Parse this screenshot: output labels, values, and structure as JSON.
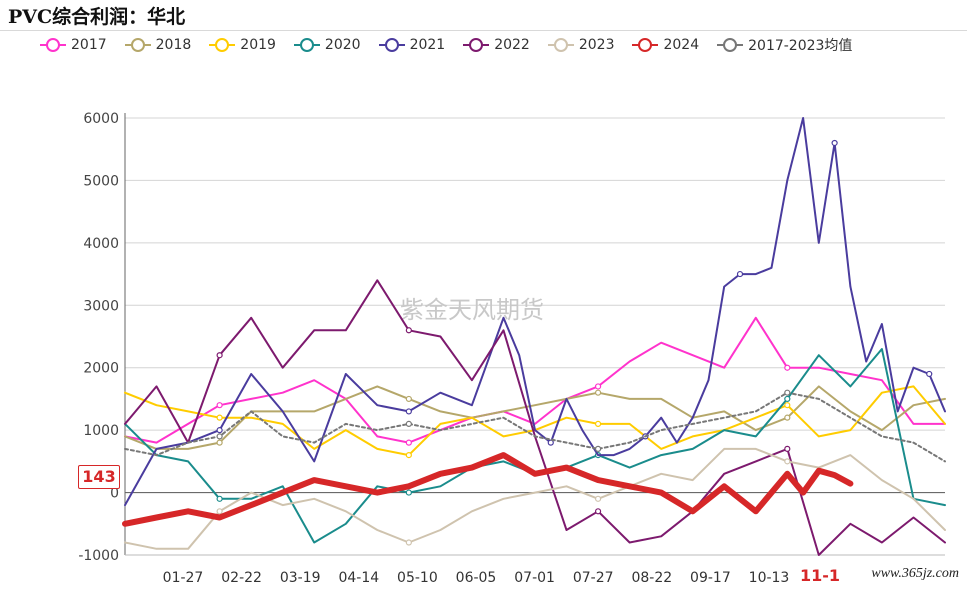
{
  "title": "PVC综合利润：华北",
  "watermark": "紫金天风期货",
  "corner_watermark": "www.365jz.com",
  "latest_value_label": "143",
  "axis_pointer_label": "11-1",
  "legend": [
    {
      "name": "2017",
      "color": "#ff33cc"
    },
    {
      "name": "2018",
      "color": "#b5a76a"
    },
    {
      "name": "2019",
      "color": "#ffcc00"
    },
    {
      "name": "2020",
      "color": "#1a8c8c"
    },
    {
      "name": "2021",
      "color": "#4a3c9e"
    },
    {
      "name": "2022",
      "color": "#7d1a6e"
    },
    {
      "name": "2023",
      "color": "#cfc3ae"
    },
    {
      "name": "2024",
      "color": "#d62728"
    },
    {
      "name": "2017-2023均值",
      "color": "#777777"
    }
  ],
  "chart_data": {
    "type": "line",
    "title": "PVC综合利润：华北",
    "x_ticks": [
      "01-27",
      "02-22",
      "03-19",
      "04-14",
      "05-10",
      "06-05",
      "07-01",
      "07-27",
      "08-22",
      "09-17",
      "10-13",
      "11-1"
    ],
    "ylim": [
      -1000,
      6000
    ],
    "y_ticks": [
      -1000,
      0,
      1000,
      2000,
      3000,
      4000,
      5000,
      6000
    ],
    "grid": true,
    "legend_position": "top",
    "x_index_range": [
      0,
      52
    ],
    "series": [
      {
        "name": "2017",
        "color": "#ff33cc",
        "width": 2,
        "x": [
          0,
          2,
          4,
          6,
          8,
          10,
          12,
          14,
          16,
          18,
          20,
          22,
          24,
          26,
          28,
          30,
          32,
          34,
          36,
          38,
          40,
          42,
          44,
          46,
          48,
          50,
          52
        ],
        "y": [
          900,
          800,
          1100,
          1400,
          1500,
          1600,
          1800,
          1500,
          900,
          800,
          1000,
          1200,
          1300,
          1100,
          1500,
          1700,
          2100,
          2400,
          2200,
          2000,
          2800,
          2000,
          2000,
          1900,
          1800,
          1100,
          1100
        ]
      },
      {
        "name": "2018",
        "color": "#b5a76a",
        "width": 2,
        "x": [
          0,
          2,
          4,
          6,
          8,
          10,
          12,
          14,
          16,
          18,
          20,
          22,
          24,
          26,
          28,
          30,
          32,
          34,
          36,
          38,
          40,
          42,
          44,
          46,
          48,
          50,
          52
        ],
        "y": [
          900,
          700,
          700,
          800,
          1300,
          1300,
          1300,
          1500,
          1700,
          1500,
          1300,
          1200,
          1300,
          1400,
          1500,
          1600,
          1500,
          1500,
          1200,
          1300,
          1000,
          1200,
          1700,
          1300,
          1000,
          1400,
          1500
        ]
      },
      {
        "name": "2019",
        "color": "#ffcc00",
        "width": 2,
        "x": [
          0,
          2,
          4,
          6,
          8,
          10,
          12,
          14,
          16,
          18,
          20,
          22,
          24,
          26,
          28,
          30,
          32,
          34,
          36,
          38,
          40,
          42,
          44,
          46,
          48,
          50,
          52
        ],
        "y": [
          1600,
          1400,
          1300,
          1200,
          1200,
          1100,
          700,
          1000,
          700,
          600,
          1100,
          1200,
          900,
          1000,
          1200,
          1100,
          1100,
          700,
          900,
          1000,
          1200,
          1400,
          900,
          1000,
          1600,
          1700,
          1100
        ]
      },
      {
        "name": "2020",
        "color": "#1a8c8c",
        "width": 2,
        "x": [
          0,
          2,
          4,
          6,
          8,
          10,
          12,
          14,
          16,
          18,
          20,
          22,
          24,
          26,
          28,
          30,
          32,
          34,
          36,
          38,
          40,
          42,
          44,
          46,
          48,
          50,
          52
        ],
        "y": [
          1100,
          600,
          500,
          -100,
          -100,
          100,
          -800,
          -500,
          100,
          0,
          100,
          400,
          500,
          300,
          400,
          600,
          400,
          600,
          700,
          1000,
          900,
          1500,
          2200,
          1700,
          2300,
          -100,
          -200
        ]
      },
      {
        "name": "2021",
        "color": "#4a3c9e",
        "width": 2,
        "x": [
          0,
          2,
          4,
          6,
          8,
          10,
          12,
          14,
          16,
          18,
          20,
          22,
          24,
          25,
          26,
          27,
          28,
          29,
          30,
          31,
          32,
          33,
          34,
          35,
          36,
          37,
          38,
          39,
          40,
          41,
          42,
          43,
          44,
          45,
          46,
          47,
          48,
          49,
          50,
          51,
          52
        ],
        "y": [
          -200,
          700,
          800,
          1000,
          1900,
          1300,
          500,
          1900,
          1400,
          1300,
          1600,
          1400,
          2800,
          2200,
          1000,
          800,
          1500,
          1000,
          600,
          600,
          700,
          900,
          1200,
          800,
          1200,
          1800,
          3300,
          3500,
          3500,
          3600,
          5000,
          6000,
          4000,
          5600,
          3300,
          2100,
          2700,
          1300,
          2000,
          1900,
          1300
        ]
      },
      {
        "name": "2022",
        "color": "#7d1a6e",
        "width": 2,
        "x": [
          0,
          2,
          4,
          6,
          8,
          10,
          12,
          14,
          16,
          18,
          20,
          22,
          24,
          26,
          28,
          30,
          32,
          34,
          36,
          38,
          40,
          42,
          44,
          46,
          48,
          50,
          52
        ],
        "y": [
          1100,
          1700,
          800,
          2200,
          2800,
          2000,
          2600,
          2600,
          3400,
          2600,
          2500,
          1800,
          2600,
          900,
          -600,
          -300,
          -800,
          -700,
          -300,
          300,
          500,
          700,
          -1000,
          -500,
          -800,
          -400,
          -800
        ]
      },
      {
        "name": "2023",
        "color": "#cfc3ae",
        "width": 2,
        "x": [
          0,
          2,
          4,
          6,
          8,
          10,
          12,
          14,
          16,
          18,
          20,
          22,
          24,
          26,
          28,
          30,
          32,
          34,
          36,
          38,
          40,
          42,
          44,
          46,
          48,
          50,
          52
        ],
        "y": [
          -800,
          -900,
          -900,
          -300,
          0,
          -200,
          -100,
          -300,
          -600,
          -800,
          -600,
          -300,
          -100,
          0,
          100,
          -100,
          100,
          300,
          200,
          700,
          700,
          500,
          400,
          600,
          200,
          -100,
          -600
        ]
      },
      {
        "name": "2024",
        "color": "#d62728",
        "width": 6,
        "x": [
          0,
          2,
          4,
          6,
          8,
          10,
          12,
          14,
          16,
          18,
          20,
          22,
          24,
          26,
          28,
          30,
          32,
          34,
          36,
          38,
          40,
          42,
          43,
          44,
          45,
          46
        ],
        "y": [
          -500,
          -400,
          -300,
          -400,
          -200,
          0,
          200,
          100,
          0,
          100,
          300,
          400,
          600,
          300,
          400,
          200,
          100,
          0,
          -300,
          100,
          -300,
          300,
          0,
          350,
          280,
          143
        ]
      },
      {
        "name": "2017-2023均值",
        "color": "#777777",
        "width": 2,
        "dash": "3,3",
        "x": [
          0,
          2,
          4,
          6,
          8,
          10,
          12,
          14,
          16,
          18,
          20,
          22,
          24,
          26,
          28,
          30,
          32,
          34,
          36,
          38,
          40,
          42,
          44,
          46,
          48,
          50,
          52
        ],
        "y": [
          700,
          600,
          800,
          900,
          1300,
          900,
          800,
          1100,
          1000,
          1100,
          1000,
          1100,
          1200,
          900,
          800,
          700,
          800,
          1000,
          1100,
          1200,
          1300,
          1600,
          1500,
          1200,
          900,
          800,
          500
        ]
      }
    ]
  }
}
